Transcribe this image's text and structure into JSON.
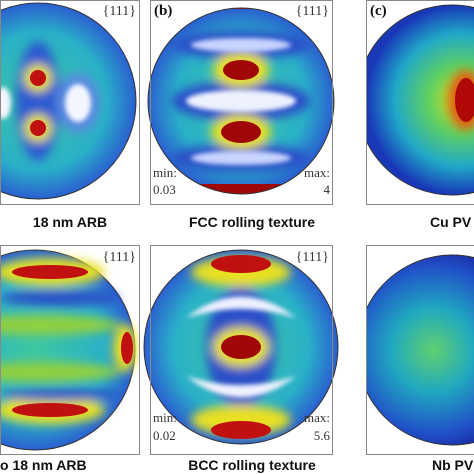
{
  "panels": [
    {
      "pole": "{111}",
      "caption": "18 nm ARB"
    },
    {
      "tag": "(b)",
      "pole": "{111}",
      "min_label": "min:",
      "min": 0.03,
      "max_label": "max:",
      "max": 4,
      "caption": "FCC rolling texture"
    },
    {
      "tag": "(c)",
      "caption": "Cu PV"
    },
    {
      "pole": "{111}",
      "caption": "o 18 nm ARB"
    },
    {
      "pole": "{111}",
      "min_label": "min:",
      "min": 0.02,
      "max_label": "max:",
      "max": 5.6,
      "caption": "BCC rolling texture"
    },
    {
      "caption": "Nb PV"
    }
  ]
}
